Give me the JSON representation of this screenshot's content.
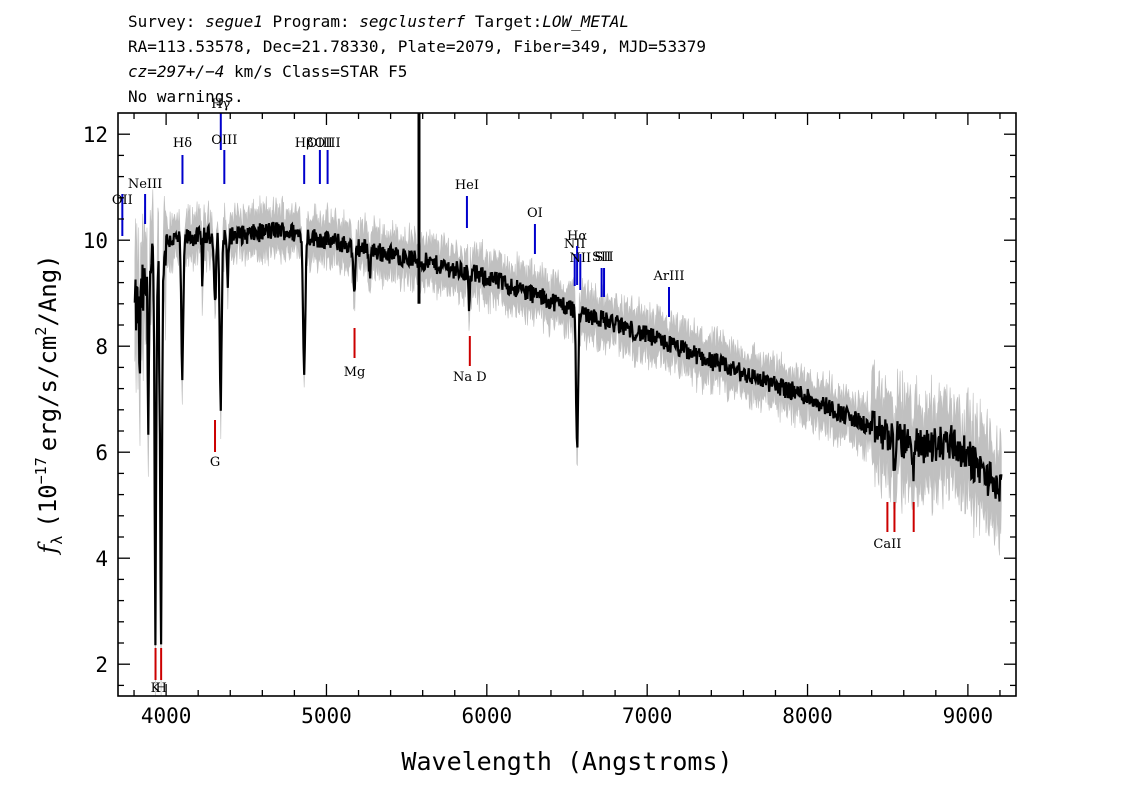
{
  "header": {
    "line1": {
      "survey_label": "Survey:",
      "survey": "segue1",
      "program_label": "Program:",
      "program": "segclusterf",
      "target_label": "Target:",
      "target": "LOW_METAL"
    },
    "line2": "RA=113.53578, Dec=21.78330, Plate=2079, Fiber=349, MJD=53379",
    "line3": {
      "cz": "cz=297+/−4",
      "rest": "km/s Class=STAR F5"
    },
    "line4": "No warnings."
  },
  "chart_data": {
    "type": "line",
    "xlabel": "Wavelength (Angstroms)",
    "ylabel_base": "f",
    "ylabel_sub": "λ",
    "ylabel_pre": "(10",
    "ylabel_exp": "−17",
    "ylabel_post": "erg/s/cm",
    "ylabel_exp2": "2",
    "ylabel_end": "/Ang)",
    "xlim": [
      3700,
      9300
    ],
    "ylim": [
      1.4,
      12.4
    ],
    "xticks": [
      4000,
      5000,
      6000,
      7000,
      8000,
      9000
    ],
    "yticks": [
      2,
      4,
      6,
      8,
      10,
      12
    ],
    "colors": {
      "spectrum": "#000000",
      "error": "#c0c0c0",
      "emission": "#0000cc",
      "absorption": "#cc0000"
    },
    "continuum": [
      [
        3800,
        8.6
      ],
      [
        3900,
        9.3
      ],
      [
        4000,
        10.0
      ],
      [
        4300,
        10.1
      ],
      [
        4500,
        10.1
      ],
      [
        4700,
        10.2
      ],
      [
        5000,
        10.0
      ],
      [
        5300,
        9.8
      ],
      [
        5600,
        9.6
      ],
      [
        6000,
        9.3
      ],
      [
        6500,
        8.75
      ],
      [
        7000,
        8.2
      ],
      [
        7500,
        7.6
      ],
      [
        8000,
        7.05
      ],
      [
        8500,
        6.3
      ],
      [
        8700,
        6.1
      ],
      [
        8900,
        6.2
      ],
      [
        9200,
        5.3
      ]
    ],
    "absorption_features": [
      {
        "x": 3835,
        "depth": 1.3,
        "width": 5
      },
      {
        "x": 3889,
        "depth": 2.3,
        "width": 6
      },
      {
        "x": 3933,
        "depth": 6.8,
        "width": 7
      },
      {
        "x": 3968,
        "depth": 6.9,
        "width": 9
      },
      {
        "x": 4101,
        "depth": 2.6,
        "width": 9
      },
      {
        "x": 4227,
        "depth": 0.9,
        "width": 5
      },
      {
        "x": 4305,
        "depth": 1.3,
        "width": 8
      },
      {
        "x": 4340,
        "depth": 3.2,
        "width": 9
      },
      {
        "x": 4384,
        "depth": 1.0,
        "width": 6
      },
      {
        "x": 4861,
        "depth": 2.7,
        "width": 9
      },
      {
        "x": 5173,
        "depth": 1.0,
        "width": 9
      },
      {
        "x": 5270,
        "depth": 0.5,
        "width": 6
      },
      {
        "x": 5890,
        "depth": 0.7,
        "width": 6
      },
      {
        "x": 6563,
        "depth": 2.6,
        "width": 9
      },
      {
        "x": 8542,
        "depth": 0.6,
        "width": 6
      },
      {
        "x": 8662,
        "depth": 0.5,
        "width": 6
      }
    ],
    "spike": {
      "x": 5577,
      "ymin": 8.8,
      "ymax": 12.4
    },
    "emission_lines": [
      {
        "label": "OII",
        "x": 3727
      },
      {
        "label": "NeIII",
        "x": 3869
      },
      {
        "label": "Hδ",
        "x": 4102
      },
      {
        "label": "Hγ",
        "x": 4341
      },
      {
        "label": "OIII",
        "x": 4363
      },
      {
        "label": "Hβ",
        "x": 4861
      },
      {
        "label": "OIII",
        "x": 4959
      },
      {
        "label": "OIII",
        "x": 5007
      },
      {
        "label": "HeI",
        "x": 5876
      },
      {
        "label": "OI",
        "x": 6300
      },
      {
        "label": "NII",
        "x": 6548
      },
      {
        "label": "Hα",
        "x": 6563
      },
      {
        "label": "NII",
        "x": 6583
      },
      {
        "label": "SII",
        "x": 6716
      },
      {
        "label": "SII",
        "x": 6731
      },
      {
        "label": "ArIII",
        "x": 7136
      }
    ],
    "absorption_lines": [
      {
        "label": "K",
        "x": 3934
      },
      {
        "label": "H",
        "x": 3969
      },
      {
        "label": "G",
        "x": 4305
      },
      {
        "label": "Mg",
        "x": 5175
      },
      {
        "label": "Na D",
        "x": 5894
      },
      {
        "label": "CaII",
        "x": 8498
      },
      {
        "label": "CaII",
        "x": 8542
      },
      {
        "label": "CaII",
        "x": 8662
      }
    ]
  }
}
